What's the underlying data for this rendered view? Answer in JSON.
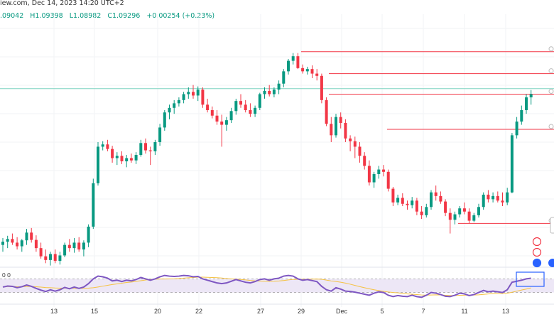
{
  "header": {
    "source": "iew.com,",
    "datetime": "Dec 14, 2023 14:20 UTC+2"
  },
  "ohlc": {
    "open": ".09042",
    "high": "H1.09398",
    "low": "L1.08982",
    "close": "C1.09296",
    "change": "+0.00254 (+0.23%)"
  },
  "colors": {
    "up": "#089981",
    "down": "#f23645",
    "level_line": "#f23645",
    "price_line": "#7dd3c0",
    "rsi_line": "#7e57c2",
    "rsi_ma": "#f5c242",
    "rsi_band": "#ede7f6",
    "highlight_box": "#2962ff"
  },
  "rsi_label": "0 0",
  "icons": [
    "lightning-icon",
    "us-flag-icon",
    "eu-flag-icon",
    "circle-icon"
  ],
  "chart_data": {
    "type": "candlestick",
    "x_tick_labels": [
      "13",
      "15",
      "20",
      "22",
      "27",
      "29",
      "Dec",
      "5",
      "7",
      "11",
      "13"
    ],
    "series": [
      {
        "values": [
          [
            1.0655,
            1.067,
            1.064,
            1.0662
          ],
          [
            1.0662,
            1.0675,
            1.0648,
            1.0668
          ],
          [
            1.0668,
            1.068,
            1.0655,
            1.066
          ],
          [
            1.066,
            1.0672,
            1.0645,
            1.0652
          ],
          [
            1.0652,
            1.0668,
            1.064,
            1.0665
          ],
          [
            1.0665,
            1.069,
            1.0655,
            1.0682
          ],
          [
            1.0682,
            1.0692,
            1.066,
            1.0666
          ],
          [
            1.0666,
            1.0676,
            1.064,
            1.0648
          ],
          [
            1.0648,
            1.066,
            1.0625,
            1.063
          ],
          [
            1.063,
            1.0645,
            1.0615,
            1.0622
          ],
          [
            1.0622,
            1.064,
            1.061,
            1.0635
          ],
          [
            1.0635,
            1.0645,
            1.0615,
            1.062
          ],
          [
            1.062,
            1.064,
            1.0612,
            1.0632
          ],
          [
            1.0632,
            1.066,
            1.0628,
            1.0655
          ],
          [
            1.0655,
            1.0668,
            1.064,
            1.0648
          ],
          [
            1.0648,
            1.067,
            1.0638,
            1.066
          ],
          [
            1.066,
            1.0672,
            1.064,
            1.0645
          ],
          [
            1.0645,
            1.0665,
            1.063,
            1.066
          ],
          [
            1.066,
            1.07,
            1.065,
            1.0695
          ],
          [
            1.0695,
            1.08,
            1.069,
            1.079
          ],
          [
            1.079,
            1.088,
            1.0785,
            1.087
          ],
          [
            1.087,
            1.0882,
            1.0862,
            1.0875
          ],
          [
            1.0875,
            1.0885,
            1.086,
            1.0865
          ],
          [
            1.0865,
            1.0872,
            1.0835,
            1.0845
          ],
          [
            1.0845,
            1.0858,
            1.083,
            1.085
          ],
          [
            1.085,
            1.086,
            1.0832,
            1.0838
          ],
          [
            1.0838,
            1.0852,
            1.0825,
            1.0845
          ],
          [
            1.0845,
            1.0855,
            1.0835,
            1.084
          ],
          [
            1.084,
            1.0858,
            1.0832,
            1.0852
          ],
          [
            1.0852,
            1.0885,
            1.0848,
            1.0878
          ],
          [
            1.0878,
            1.0888,
            1.0855,
            1.0862
          ],
          [
            1.0862,
            1.087,
            1.083,
            1.086
          ],
          [
            1.086,
            1.0885,
            1.0852,
            1.088
          ],
          [
            1.088,
            1.092,
            1.0872,
            1.0912
          ],
          [
            1.0912,
            1.095,
            1.0905,
            1.0945
          ],
          [
            1.0945,
            1.0962,
            1.093,
            1.0955
          ],
          [
            1.0955,
            1.0972,
            1.0942,
            1.0965
          ],
          [
            1.0965,
            1.0978,
            1.0958,
            1.0972
          ],
          [
            1.0972,
            1.099,
            1.0965,
            1.0985
          ],
          [
            1.0985,
            1.1,
            1.0975,
            1.099
          ],
          [
            1.099,
            1.1005,
            1.0975,
            1.0982
          ],
          [
            1.0982,
            1.1002,
            1.097,
            1.0995
          ],
          [
            1.0995,
            1.1,
            1.0955,
            1.0962
          ],
          [
            1.0962,
            1.0975,
            1.0945,
            1.095
          ],
          [
            1.095,
            1.0958,
            1.0932,
            1.0938
          ],
          [
            1.0938,
            1.095,
            1.0918,
            1.0925
          ],
          [
            1.0925,
            1.094,
            1.087,
            1.0918
          ],
          [
            1.0918,
            1.0935,
            1.0905,
            1.0928
          ],
          [
            1.0928,
            1.0955,
            1.0922,
            1.0948
          ],
          [
            1.0948,
            1.0975,
            1.094,
            1.097
          ],
          [
            1.097,
            1.0985,
            1.0955,
            1.0962
          ],
          [
            1.0962,
            1.0972,
            1.0945,
            1.095
          ],
          [
            1.095,
            1.0965,
            1.0935,
            1.0942
          ],
          [
            1.0942,
            1.096,
            1.0935,
            1.0955
          ],
          [
            1.0955,
            1.0988,
            1.095,
            1.0985
          ],
          [
            1.0985,
            1.1,
            1.0975,
            1.0992
          ],
          [
            1.0992,
            1.1005,
            1.098,
            1.0985
          ],
          [
            1.0985,
            1.1,
            1.0978,
            1.0995
          ],
          [
            1.0995,
            1.1015,
            1.0985,
            1.1008
          ],
          [
            1.1008,
            1.104,
            1.1,
            1.1035
          ],
          [
            1.1035,
            1.1062,
            1.1028,
            1.1058
          ],
          [
            1.1058,
            1.1075,
            1.105,
            1.1068
          ],
          [
            1.1068,
            1.1075,
            1.104,
            1.1042
          ],
          [
            1.1042,
            1.105,
            1.103,
            1.1035
          ],
          [
            1.1035,
            1.1045,
            1.1028,
            1.104
          ],
          [
            1.104,
            1.1048,
            1.102,
            1.103
          ],
          [
            1.103,
            1.104,
            1.1015,
            1.1025
          ],
          [
            1.1025,
            1.103,
            1.0965,
            1.0972
          ],
          [
            1.0972,
            1.0978,
            1.0915,
            1.092
          ],
          [
            1.092,
            1.0935,
            1.088,
            1.0895
          ],
          [
            1.0895,
            1.0942,
            1.089,
            1.0935
          ],
          [
            1.0935,
            1.0945,
            1.091,
            1.0922
          ],
          [
            1.0922,
            1.093,
            1.088,
            1.0888
          ],
          [
            1.0888,
            1.0895,
            1.086,
            1.0882
          ],
          [
            1.0882,
            1.0892,
            1.0845,
            1.087
          ],
          [
            1.087,
            1.088,
            1.0835,
            1.085
          ],
          [
            1.085,
            1.0858,
            1.082,
            1.0828
          ],
          [
            1.0828,
            1.084,
            1.0785,
            1.0792
          ],
          [
            1.0792,
            1.0815,
            1.078,
            1.081
          ],
          [
            1.081,
            1.0828,
            1.08,
            1.082
          ],
          [
            1.082,
            1.083,
            1.0805,
            1.0815
          ],
          [
            1.0815,
            1.082,
            1.0772,
            1.0778
          ],
          [
            1.0778,
            1.0782,
            1.074,
            1.0748
          ],
          [
            1.0748,
            1.0765,
            1.0742,
            1.0758
          ],
          [
            1.0758,
            1.0768,
            1.074,
            1.0745
          ],
          [
            1.0745,
            1.0752,
            1.0732,
            1.0742
          ],
          [
            1.0742,
            1.076,
            1.0735,
            1.0752
          ],
          [
            1.0752,
            1.0758,
            1.072,
            1.0728
          ],
          [
            1.0728,
            1.074,
            1.0712,
            1.072
          ],
          [
            1.072,
            1.0745,
            1.0715,
            1.0738
          ],
          [
            1.0738,
            1.0775,
            1.0732,
            1.077
          ],
          [
            1.077,
            1.0785,
            1.0752,
            1.0762
          ],
          [
            1.0762,
            1.0772,
            1.0745,
            1.075
          ],
          [
            1.075,
            1.0755,
            1.0718,
            1.0725
          ],
          [
            1.0725,
            1.0735,
            1.068,
            1.071
          ],
          [
            1.071,
            1.0728,
            1.07,
            1.0722
          ],
          [
            1.0722,
            1.074,
            1.0715,
            1.0735
          ],
          [
            1.0735,
            1.0748,
            1.0722,
            1.0728
          ],
          [
            1.0728,
            1.0735,
            1.0702,
            1.0708
          ],
          [
            1.0708,
            1.0725,
            1.0705,
            1.072
          ],
          [
            1.072,
            1.0745,
            1.0715,
            1.0738
          ],
          [
            1.0738,
            1.077,
            1.0732,
            1.0765
          ],
          [
            1.0765,
            1.0775,
            1.0748,
            1.0755
          ],
          [
            1.0755,
            1.077,
            1.0748,
            1.0762
          ],
          [
            1.0762,
            1.0772,
            1.0748,
            1.0752
          ],
          [
            1.0752,
            1.077,
            1.074,
            1.0748
          ],
          [
            1.0748,
            1.078,
            1.0742,
            1.077
          ],
          [
            1.077,
            1.09,
            1.0768,
            1.0895
          ],
          [
            1.0895,
            1.0935,
            1.0888,
            1.0925
          ],
          [
            1.0925,
            1.096,
            1.0918,
            1.095
          ],
          [
            1.095,
            1.0985,
            1.0942,
            1.0978
          ],
          [
            1.0978,
            1.0994,
            1.0962,
            1.0985
          ]
        ]
      }
    ],
    "horizontal_levels": [
      1.1078,
      1.103,
      1.0985,
      1.0908,
      1.0702
    ],
    "last_price": 1.0997,
    "rsi": [
      46,
      49,
      48,
      44,
      47,
      52,
      48,
      42,
      37,
      33,
      38,
      34,
      38,
      45,
      41,
      46,
      42,
      46,
      56,
      70,
      78,
      76,
      72,
      64,
      66,
      62,
      66,
      64,
      68,
      74,
      70,
      66,
      70,
      76,
      80,
      78,
      77,
      78,
      80,
      79,
      76,
      77,
      70,
      66,
      62,
      58,
      56,
      58,
      63,
      68,
      64,
      60,
      58,
      62,
      68,
      70,
      66,
      70,
      72,
      78,
      80,
      78,
      70,
      66,
      68,
      65,
      62,
      48,
      38,
      34,
      44,
      40,
      34,
      33,
      31,
      28,
      25,
      22,
      28,
      32,
      30,
      22,
      18,
      21,
      19,
      18,
      22,
      18,
      16,
      22,
      30,
      28,
      24,
      19,
      18,
      22,
      28,
      26,
      21,
      24,
      30,
      36,
      32,
      34,
      32,
      30,
      38,
      60,
      63,
      66,
      70,
      72
    ],
    "rsi_band": [
      30,
      70
    ]
  }
}
